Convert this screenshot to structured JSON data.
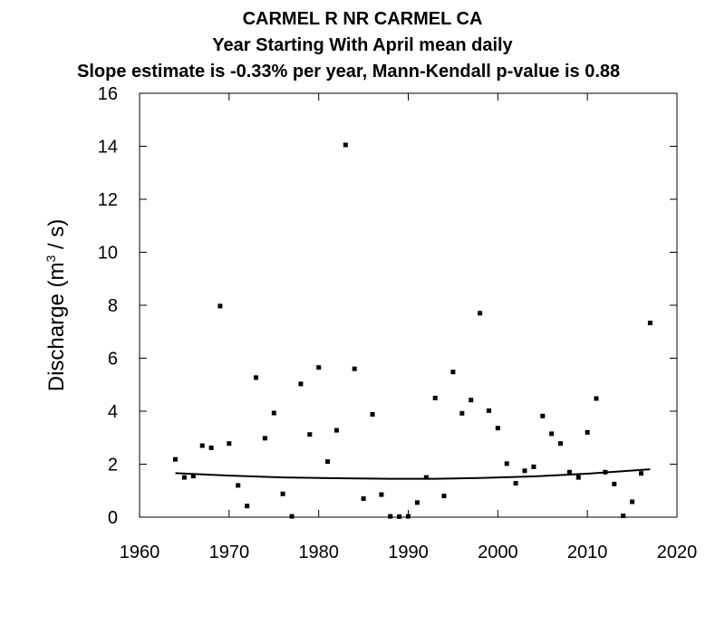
{
  "chart_data": {
    "type": "scatter",
    "title": "CARMEL R NR CARMEL CA",
    "subtitle": "Year Starting With April  mean daily",
    "subtitle2": "Slope estimate is -0.33% per year, Mann-Kendall p-value is 0.88",
    "ylabel_main": "Discharge (m",
    "ylabel_sup": "3",
    "ylabel_end": " / s)",
    "xlim": [
      1960,
      2020
    ],
    "ylim": [
      0,
      16
    ],
    "x_ticks": [
      1960,
      1970,
      1980,
      1990,
      2000,
      2010,
      2020
    ],
    "y_ticks": [
      0,
      2,
      4,
      6,
      8,
      10,
      12,
      14,
      16
    ],
    "points": [
      [
        1964,
        2.18
      ],
      [
        1965,
        1.5
      ],
      [
        1966,
        1.55
      ],
      [
        1967,
        2.7
      ],
      [
        1968,
        2.62
      ],
      [
        1969,
        7.97
      ],
      [
        1970,
        2.78
      ],
      [
        1971,
        1.2
      ],
      [
        1972,
        0.42
      ],
      [
        1973,
        5.27
      ],
      [
        1974,
        2.98
      ],
      [
        1975,
        3.93
      ],
      [
        1976,
        0.88
      ],
      [
        1977,
        0.03
      ],
      [
        1978,
        5.03
      ],
      [
        1979,
        3.12
      ],
      [
        1980,
        5.65
      ],
      [
        1981,
        2.1
      ],
      [
        1982,
        3.28
      ],
      [
        1983,
        14.05
      ],
      [
        1984,
        5.6
      ],
      [
        1985,
        0.7
      ],
      [
        1986,
        3.88
      ],
      [
        1987,
        0.85
      ],
      [
        1988,
        0.03
      ],
      [
        1989,
        0.02
      ],
      [
        1990,
        0.03
      ],
      [
        1991,
        0.55
      ],
      [
        1992,
        1.5
      ],
      [
        1993,
        4.5
      ],
      [
        1994,
        0.8
      ],
      [
        1995,
        5.48
      ],
      [
        1996,
        3.92
      ],
      [
        1997,
        4.42
      ],
      [
        1998,
        7.7
      ],
      [
        1999,
        4.02
      ],
      [
        2000,
        3.36
      ],
      [
        2001,
        2.02
      ],
      [
        2002,
        1.28
      ],
      [
        2003,
        1.75
      ],
      [
        2004,
        1.9
      ],
      [
        2005,
        3.82
      ],
      [
        2006,
        3.15
      ],
      [
        2007,
        2.78
      ],
      [
        2008,
        1.7
      ],
      [
        2009,
        1.5
      ],
      [
        2010,
        3.2
      ],
      [
        2011,
        4.48
      ],
      [
        2012,
        1.7
      ],
      [
        2013,
        1.25
      ],
      [
        2014,
        0.05
      ],
      [
        2015,
        0.58
      ],
      [
        2016,
        1.65
      ],
      [
        2017,
        7.33
      ]
    ],
    "trend": [
      [
        1964,
        1.66
      ],
      [
        1970,
        1.57
      ],
      [
        1976,
        1.5
      ],
      [
        1982,
        1.47
      ],
      [
        1988,
        1.45
      ],
      [
        1993,
        1.45
      ],
      [
        1998,
        1.48
      ],
      [
        2004,
        1.54
      ],
      [
        2010,
        1.64
      ],
      [
        2017,
        1.81
      ]
    ]
  }
}
